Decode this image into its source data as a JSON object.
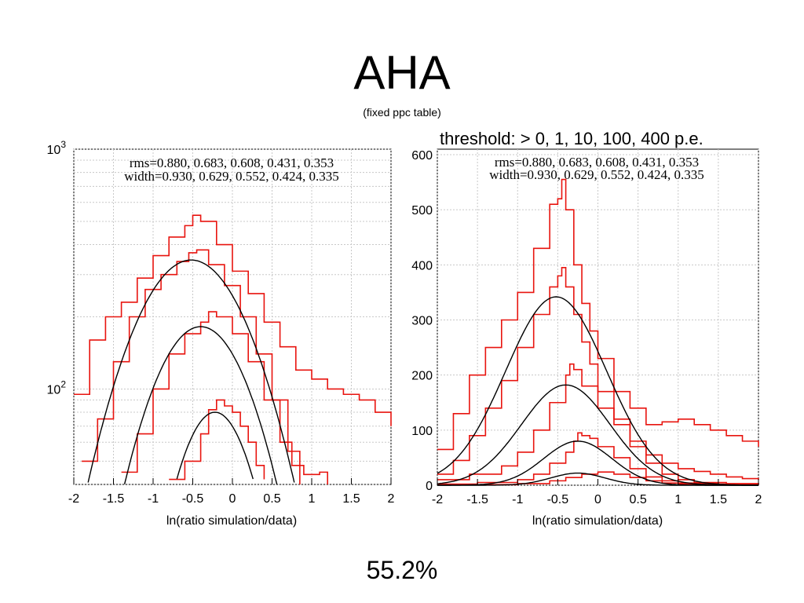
{
  "slide": {
    "title": "AHA",
    "subtitle": "(fixed ppc table)",
    "threshold_note": "threshold: > 0, 1, 10, 100, 400 p.e.",
    "footer": "55.2%"
  },
  "colors": {
    "histogram": "#e8140f",
    "fit": "#000000",
    "grid": "#c8c8c8"
  },
  "chart_data": [
    {
      "type": "line",
      "name": "left",
      "xlabel": "ln(ratio simulation/data)",
      "ylabel": "",
      "log_y": true,
      "xlim": [
        -2,
        2
      ],
      "ylim": [
        40,
        1000
      ],
      "x_ticks": [
        "-2",
        "-1.5",
        "-1",
        "-0.5",
        "0",
        "0.5",
        "1",
        "1.5",
        "2"
      ],
      "y_ticks": [
        {
          "base": "10",
          "exp": "2",
          "value": 100
        },
        {
          "base": "10",
          "exp": "3",
          "value": 1000
        }
      ],
      "annotations": [
        "rms=0.880, 0.683, 0.608, 0.431, 0.353",
        "width=0.930, 0.629, 0.552, 0.424, 0.335"
      ],
      "grid": true,
      "series": [
        {
          "kind": "histogram",
          "x": [
            -2.0,
            -1.8,
            -1.6,
            -1.4,
            -1.2,
            -1.0,
            -0.8,
            -0.6,
            -0.5,
            -0.4,
            -0.2,
            0.0,
            0.2,
            0.4,
            0.6,
            0.8,
            1.0,
            1.2,
            1.4,
            1.6,
            1.8,
            2.0
          ],
          "y": [
            95,
            160,
            200,
            230,
            290,
            360,
            430,
            480,
            530,
            500,
            400,
            310,
            250,
            190,
            150,
            120,
            110,
            100,
            95,
            90,
            80,
            70
          ]
        },
        {
          "kind": "histogram",
          "x": [
            -1.9,
            -1.7,
            -1.5,
            -1.3,
            -1.1,
            -0.9,
            -0.7,
            -0.55,
            -0.45,
            -0.3,
            -0.1,
            0.1,
            0.3,
            0.5,
            0.7,
            0.85
          ],
          "y": [
            50,
            75,
            130,
            200,
            260,
            300,
            340,
            370,
            380,
            330,
            270,
            200,
            140,
            90,
            55,
            40
          ]
        },
        {
          "kind": "histogram",
          "x": [
            -1.4,
            -1.2,
            -1.0,
            -0.8,
            -0.6,
            -0.4,
            -0.3,
            -0.2,
            0.0,
            0.2,
            0.4,
            0.6,
            0.75,
            0.9,
            1.1,
            1.2
          ],
          "y": [
            45,
            65,
            100,
            140,
            170,
            190,
            210,
            200,
            170,
            130,
            90,
            60,
            48,
            44,
            45,
            40
          ]
        },
        {
          "kind": "histogram",
          "x": [
            -0.8,
            -0.6,
            -0.4,
            -0.3,
            -0.2,
            -0.1,
            0.0,
            0.1,
            0.2,
            0.3,
            0.4
          ],
          "y": [
            42,
            50,
            65,
            82,
            90,
            85,
            80,
            70,
            60,
            48,
            42
          ]
        },
        {
          "kind": "fit",
          "mean": -0.52,
          "width": 0.629,
          "peak": 345
        },
        {
          "kind": "fit",
          "mean": -0.4,
          "width": 0.552,
          "peak": 182
        },
        {
          "kind": "fit",
          "mean": -0.22,
          "width": 0.424,
          "peak": 80
        }
      ]
    },
    {
      "type": "line",
      "name": "right",
      "xlabel": "ln(ratio simulation/data)",
      "ylabel": "",
      "log_y": false,
      "xlim": [
        -2,
        2
      ],
      "ylim": [
        0,
        610
      ],
      "x_ticks": [
        "-2",
        "-1.5",
        "-1",
        "-0.5",
        "0",
        "0.5",
        "1",
        "1.5",
        "2"
      ],
      "y_ticks": [
        "0",
        "100",
        "200",
        "300",
        "400",
        "500",
        "600"
      ],
      "annotations": [
        "rms=0.880, 0.683, 0.608, 0.431, 0.353",
        "width=0.930, 0.629, 0.552, 0.424, 0.335"
      ],
      "grid": true,
      "series": [
        {
          "kind": "histogram",
          "x": [
            -2.0,
            -1.8,
            -1.6,
            -1.4,
            -1.2,
            -1.0,
            -0.8,
            -0.6,
            -0.5,
            -0.45,
            -0.4,
            -0.3,
            -0.2,
            -0.1,
            0.0,
            0.2,
            0.4,
            0.6,
            0.8,
            1.0,
            1.2,
            1.4,
            1.6,
            1.8,
            2.0
          ],
          "y": [
            65,
            130,
            200,
            250,
            300,
            350,
            430,
            510,
            520,
            555,
            500,
            400,
            330,
            280,
            230,
            170,
            140,
            110,
            115,
            120,
            110,
            100,
            90,
            80,
            70
          ]
        },
        {
          "kind": "histogram",
          "x": [
            -2.0,
            -1.8,
            -1.6,
            -1.4,
            -1.2,
            -1.0,
            -0.8,
            -0.6,
            -0.5,
            -0.45,
            -0.4,
            -0.3,
            -0.2,
            -0.1,
            0.0,
            0.2,
            0.4,
            0.6,
            0.8,
            1.0,
            1.2,
            1.4,
            1.6,
            1.8,
            2.0
          ],
          "y": [
            20,
            45,
            90,
            140,
            190,
            250,
            310,
            360,
            380,
            395,
            360,
            310,
            260,
            220,
            170,
            120,
            80,
            55,
            40,
            30,
            25,
            20,
            15,
            12,
            10
          ]
        },
        {
          "kind": "histogram",
          "x": [
            -2.0,
            -1.6,
            -1.2,
            -1.0,
            -0.8,
            -0.6,
            -0.4,
            -0.35,
            -0.3,
            -0.2,
            0.0,
            0.2,
            0.4,
            0.6,
            0.8,
            1.0,
            1.2,
            1.6,
            2.0
          ],
          "y": [
            10,
            20,
            35,
            60,
            100,
            150,
            200,
            220,
            210,
            180,
            140,
            110,
            70,
            40,
            20,
            10,
            5,
            3,
            2
          ]
        },
        {
          "kind": "histogram",
          "x": [
            -2.0,
            -1.5,
            -1.0,
            -0.8,
            -0.6,
            -0.4,
            -0.3,
            -0.25,
            -0.2,
            -0.1,
            0.0,
            0.2,
            0.4,
            0.6,
            0.8,
            1.0,
            1.5,
            2.0
          ],
          "y": [
            2,
            5,
            10,
            20,
            40,
            60,
            80,
            95,
            90,
            85,
            70,
            50,
            30,
            15,
            8,
            4,
            2,
            1
          ]
        },
        {
          "kind": "histogram",
          "x": [
            -2.0,
            -1.0,
            -0.6,
            -0.4,
            -0.2,
            0.0,
            0.2,
            0.4,
            0.6,
            0.8,
            1.0,
            2.0
          ],
          "y": [
            1,
            3,
            8,
            14,
            20,
            24,
            20,
            14,
            8,
            4,
            2,
            1
          ]
        },
        {
          "kind": "fit",
          "mean": -0.52,
          "width": 0.629,
          "peak": 342
        },
        {
          "kind": "fit",
          "mean": -0.4,
          "width": 0.552,
          "peak": 182
        },
        {
          "kind": "fit",
          "mean": -0.25,
          "width": 0.424,
          "peak": 80
        },
        {
          "kind": "fit",
          "mean": -0.25,
          "width": 0.335,
          "peak": 22
        }
      ]
    }
  ]
}
